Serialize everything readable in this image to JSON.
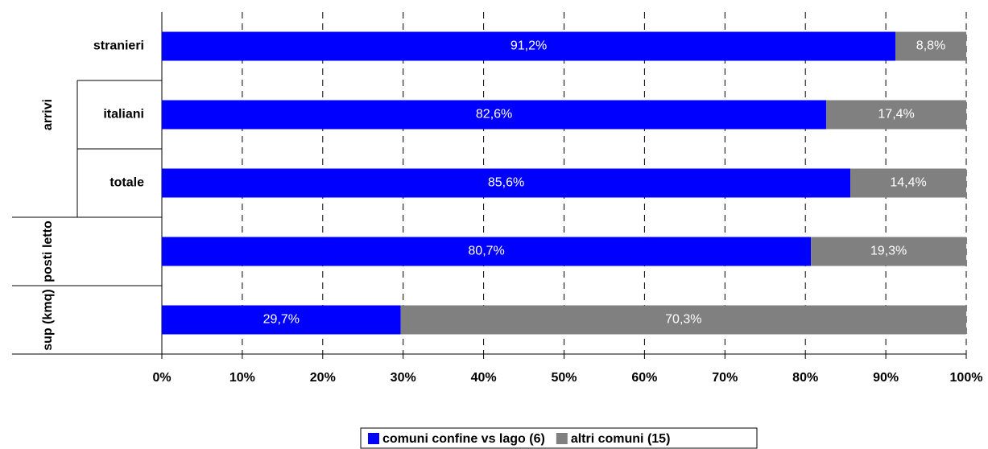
{
  "chart_data": {
    "type": "stacked_barh",
    "categories": [
      "stranieri",
      "italiani",
      "totale",
      null,
      null
    ],
    "groups": [
      "arrivi",
      "posti letto",
      "sup (kmq)"
    ],
    "series": [
      {
        "name": "comuni confine vs lago (6)",
        "color": "#0000ff",
        "values": [
          91.2,
          82.6,
          85.6,
          80.7,
          29.7
        ],
        "value_labels": [
          "91,2%",
          "82,6%",
          "85,6%",
          "80,7%",
          "29,7%"
        ]
      },
      {
        "name": "altri comuni (15)",
        "color": "#808080",
        "values": [
          8.8,
          17.4,
          14.4,
          19.3,
          70.3
        ],
        "value_labels": [
          "8,8%",
          "17,4%",
          "14,4%",
          "19,3%",
          "70,3%"
        ]
      }
    ],
    "xlim": [
      0,
      100
    ],
    "xticks": [
      {
        "value": 0,
        "label": "0%"
      },
      {
        "value": 10,
        "label": "10%"
      },
      {
        "value": 20,
        "label": "20%"
      },
      {
        "value": 30,
        "label": "30%"
      },
      {
        "value": 40,
        "label": "40%"
      },
      {
        "value": 50,
        "label": "50%"
      },
      {
        "value": 60,
        "label": "60%"
      },
      {
        "value": 70,
        "label": "70%"
      },
      {
        "value": 80,
        "label": "80%"
      },
      {
        "value": 90,
        "label": "90%"
      },
      {
        "value": 100,
        "label": "100%"
      }
    ],
    "grid": true
  }
}
